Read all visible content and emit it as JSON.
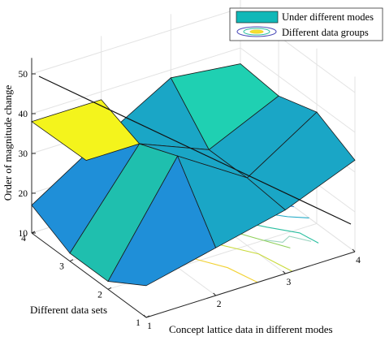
{
  "colors": {
    "surface_light": "#1fd0b2",
    "surface_mid": "#1aa6c6",
    "surface_blue": "#1f8fd8",
    "surface_yellow": "#f4f41c",
    "surface_gold": "#e6b52a",
    "legend_patch": "#10b8b8",
    "contour_low": "#f2d233",
    "contour_mid": "#2bbfa0",
    "contour_high": "#4a4ab8"
  },
  "chart_data": {
    "type": "surface3d",
    "title": "",
    "xlabel": "Concept lattice data in different modes",
    "ylabel": "Different data sets",
    "zlabel": "Order of magnitude change",
    "x_ticks": [
      "1",
      "2",
      "3",
      "4"
    ],
    "y_ticks": [
      "1",
      "2",
      "3",
      "4"
    ],
    "z_ticks": [
      "10",
      "20",
      "30",
      "40",
      "50"
    ],
    "xlim": [
      1,
      4
    ],
    "ylim": [
      1,
      4
    ],
    "zlim": [
      10,
      50
    ],
    "grid": true,
    "legend_position": "top-right",
    "legend": [
      "Under different modes",
      "Different data groups"
    ],
    "series": [
      {
        "name": "Under different modes",
        "kind": "surface",
        "x": [
          1,
          2,
          3,
          4
        ],
        "y": [
          1,
          2,
          3,
          4
        ],
        "z": [
          [
            18,
            22,
            26,
            33
          ],
          [
            12,
            38,
            27,
            38
          ],
          [
            12,
            34,
            27,
            35
          ],
          [
            17,
            28,
            38,
            36
          ]
        ]
      },
      {
        "name": "Different data groups",
        "kind": "contour",
        "levels": [
          12,
          16,
          20,
          24,
          28,
          32,
          36
        ]
      }
    ],
    "line": {
      "from": [
        4,
        4,
        48
      ],
      "to": [
        4,
        1,
        10
      ]
    }
  }
}
